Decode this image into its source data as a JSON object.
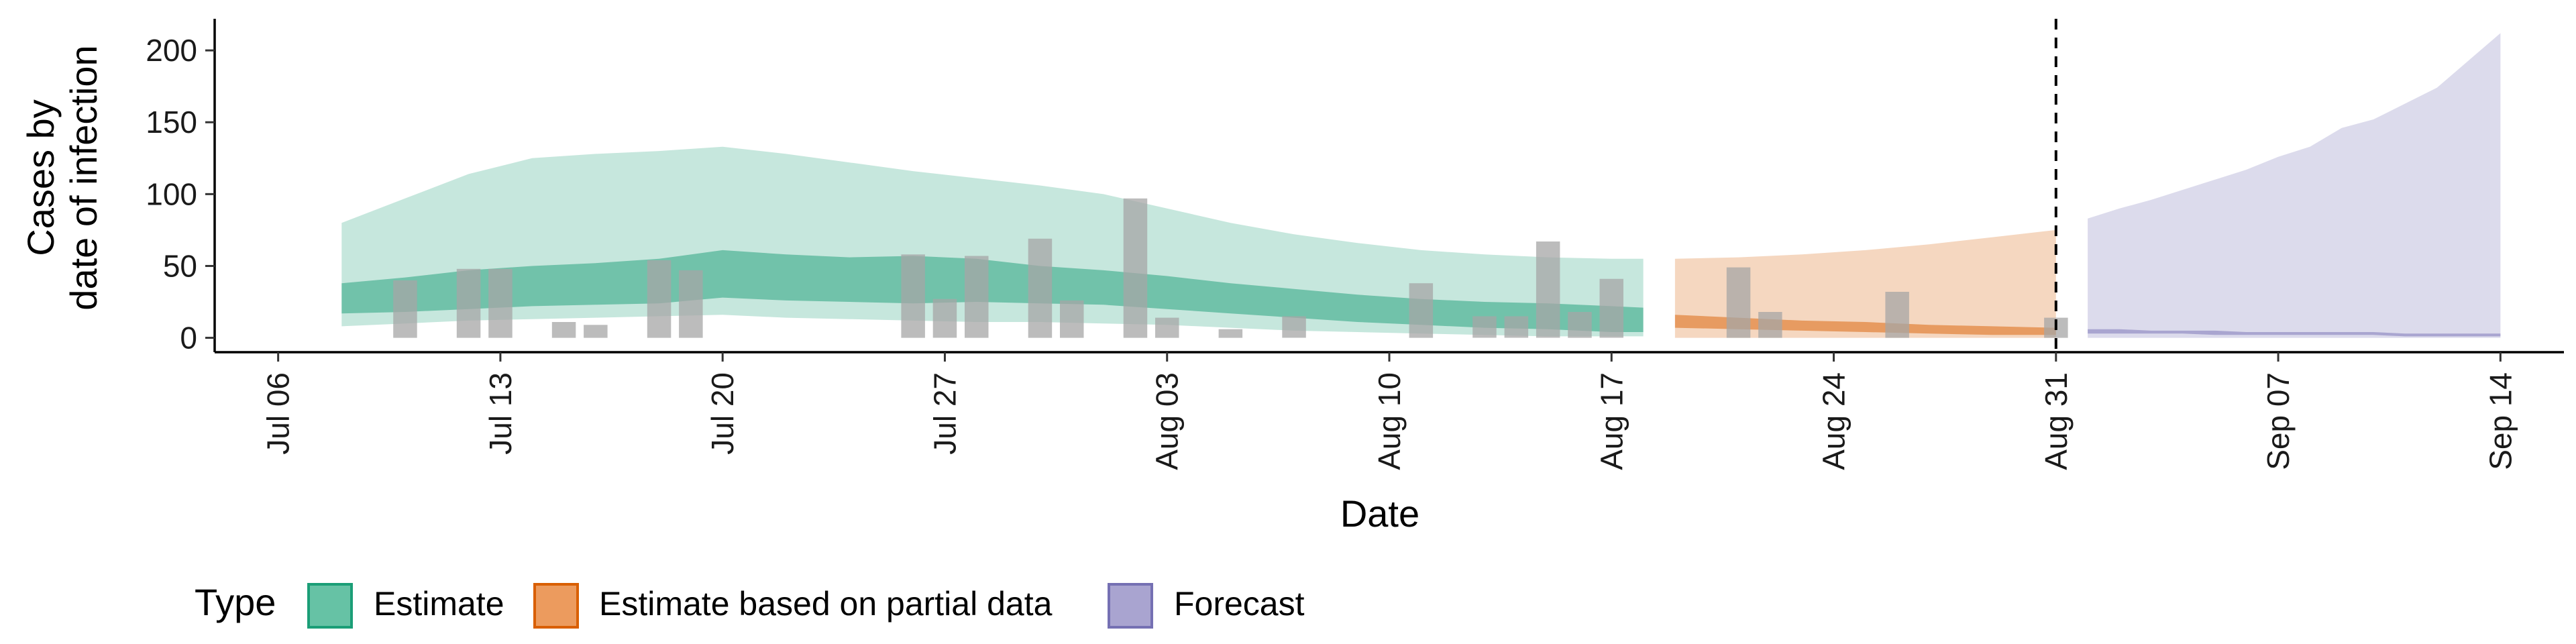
{
  "chart_data": {
    "type": "area",
    "xlabel": "Date",
    "ylabel_lines": [
      "Cases by",
      "date of infection"
    ],
    "x_axis": {
      "min": "2020-07-04",
      "max": "2020-09-16",
      "ticks": [
        {
          "date": "2020-07-06",
          "label": "Jul 06"
        },
        {
          "date": "2020-07-13",
          "label": "Jul 13"
        },
        {
          "date": "2020-07-20",
          "label": "Jul 20"
        },
        {
          "date": "2020-07-27",
          "label": "Jul 27"
        },
        {
          "date": "2020-08-03",
          "label": "Aug 03"
        },
        {
          "date": "2020-08-10",
          "label": "Aug 10"
        },
        {
          "date": "2020-08-17",
          "label": "Aug 17"
        },
        {
          "date": "2020-08-24",
          "label": "Aug 24"
        },
        {
          "date": "2020-08-31",
          "label": "Aug 31"
        },
        {
          "date": "2020-09-07",
          "label": "Sep 07"
        },
        {
          "date": "2020-09-14",
          "label": "Sep 14"
        }
      ]
    },
    "y_axis": {
      "min": -10,
      "max": 222,
      "ticks": [
        0,
        50,
        100,
        150,
        200
      ]
    },
    "vline_date": "2020-08-31",
    "legend": {
      "title": "Type",
      "position": "bottom",
      "entries": [
        {
          "label": "Estimate",
          "fill": "#66c2a5",
          "stroke": "#1b9e77"
        },
        {
          "label": "Estimate based on partial data",
          "fill": "#ec9b5e",
          "stroke": "#d95f02"
        },
        {
          "label": "Forecast",
          "fill": "#a9a4d0",
          "stroke": "#7570b3"
        }
      ]
    },
    "series": [
      {
        "type_label": "Estimate",
        "color": "#1b9e77",
        "dates": [
          "2020-07-08",
          "2020-07-10",
          "2020-07-12",
          "2020-07-14",
          "2020-07-16",
          "2020-07-18",
          "2020-07-20",
          "2020-07-22",
          "2020-07-24",
          "2020-07-26",
          "2020-07-28",
          "2020-07-30",
          "2020-08-01",
          "2020-08-03",
          "2020-08-05",
          "2020-08-07",
          "2020-08-09",
          "2020-08-11",
          "2020-08-13",
          "2020-08-15",
          "2020-08-17",
          "2020-08-18"
        ],
        "outer_lower": [
          8,
          10,
          12,
          13,
          14,
          15,
          16,
          14,
          13,
          12,
          11,
          11,
          10,
          9,
          7,
          5,
          4,
          3,
          2,
          1,
          1,
          1
        ],
        "outer_upper": [
          80,
          97,
          114,
          125,
          128,
          130,
          133,
          128,
          122,
          116,
          111,
          106,
          100,
          90,
          80,
          72,
          66,
          61,
          58,
          56,
          55,
          55
        ],
        "inner_lower": [
          17,
          18,
          20,
          22,
          23,
          24,
          28,
          26,
          25,
          24,
          25,
          24,
          23,
          20,
          17,
          14,
          11,
          9,
          7,
          6,
          4,
          4
        ],
        "inner_upper": [
          38,
          42,
          47,
          50,
          52,
          55,
          61,
          58,
          56,
          57,
          55,
          50,
          47,
          43,
          38,
          34,
          30,
          27,
          25,
          24,
          22,
          21
        ]
      },
      {
        "type_label": "Estimate based on partial data",
        "color": "#d95f02",
        "dates": [
          "2020-08-19",
          "2020-08-21",
          "2020-08-23",
          "2020-08-25",
          "2020-08-27",
          "2020-08-29",
          "2020-08-31"
        ],
        "outer_lower": [
          0,
          0,
          0,
          0,
          0,
          0,
          0
        ],
        "outer_upper": [
          55,
          56,
          58,
          61,
          65,
          70,
          75
        ],
        "inner_lower": [
          7,
          6,
          5,
          4,
          3,
          2,
          2
        ],
        "inner_upper": [
          16,
          14,
          12,
          11,
          9,
          8,
          7
        ]
      },
      {
        "type_label": "Forecast",
        "color": "#7570b3",
        "dates": [
          "2020-09-01",
          "2020-09-02",
          "2020-09-03",
          "2020-09-04",
          "2020-09-05",
          "2020-09-06",
          "2020-09-07",
          "2020-09-08",
          "2020-09-09",
          "2020-09-10",
          "2020-09-11",
          "2020-09-12",
          "2020-09-13",
          "2020-09-14"
        ],
        "outer_lower": [
          0,
          0,
          0,
          0,
          0,
          0,
          0,
          0,
          0,
          0,
          0,
          0,
          0,
          0
        ],
        "outer_upper": [
          83,
          90,
          96,
          103,
          110,
          117,
          126,
          133,
          146,
          152,
          163,
          174,
          193,
          212
        ],
        "inner_lower": [
          3,
          3,
          3,
          3,
          2,
          2,
          2,
          2,
          2,
          2,
          1,
          1,
          1,
          1
        ],
        "inner_upper": [
          6,
          6,
          5,
          5,
          5,
          4,
          4,
          4,
          4,
          4,
          3,
          3,
          3,
          3
        ]
      }
    ],
    "bars": {
      "color": "#a6a6a6",
      "data": [
        {
          "date": "2020-07-10",
          "value": 40
        },
        {
          "date": "2020-07-12",
          "value": 48
        },
        {
          "date": "2020-07-13",
          "value": 48
        },
        {
          "date": "2020-07-15",
          "value": 11
        },
        {
          "date": "2020-07-16",
          "value": 9
        },
        {
          "date": "2020-07-18",
          "value": 54
        },
        {
          "date": "2020-07-19",
          "value": 47
        },
        {
          "date": "2020-07-26",
          "value": 58
        },
        {
          "date": "2020-07-27",
          "value": 27
        },
        {
          "date": "2020-07-28",
          "value": 57
        },
        {
          "date": "2020-07-30",
          "value": 69
        },
        {
          "date": "2020-07-31",
          "value": 26
        },
        {
          "date": "2020-08-02",
          "value": 97
        },
        {
          "date": "2020-08-03",
          "value": 14
        },
        {
          "date": "2020-08-05",
          "value": 6
        },
        {
          "date": "2020-08-07",
          "value": 15
        },
        {
          "date": "2020-08-11",
          "value": 38
        },
        {
          "date": "2020-08-13",
          "value": 15
        },
        {
          "date": "2020-08-14",
          "value": 15
        },
        {
          "date": "2020-08-15",
          "value": 67
        },
        {
          "date": "2020-08-16",
          "value": 18
        },
        {
          "date": "2020-08-17",
          "value": 41
        },
        {
          "date": "2020-08-21",
          "value": 49
        },
        {
          "date": "2020-08-22",
          "value": 18
        },
        {
          "date": "2020-08-26",
          "value": 32
        },
        {
          "date": "2020-08-31",
          "value": 14
        }
      ]
    }
  }
}
